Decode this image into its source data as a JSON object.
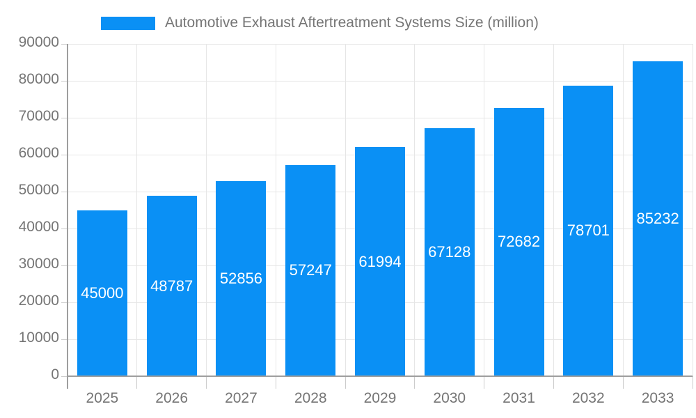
{
  "chart_data": {
    "type": "bar",
    "title": "Automotive Exhaust Aftertreatment Systems Size (million)",
    "categories": [
      "2025",
      "2026",
      "2027",
      "2028",
      "2029",
      "2030",
      "2031",
      "2032",
      "2033"
    ],
    "values": [
      45000,
      48787,
      52856,
      57247,
      61994,
      67128,
      72682,
      78701,
      85232
    ],
    "ylim": [
      0,
      90000
    ],
    "ytick_step": 10000,
    "ytick_labels": [
      "0",
      "10000",
      "20000",
      "30000",
      "40000",
      "50000",
      "60000",
      "70000",
      "80000",
      "90000"
    ],
    "legend_position": "top",
    "grid": "on",
    "colors": {
      "bar": "#0a90f5",
      "bar_label": "#ffffff",
      "axis_text": "#757575",
      "grid_line": "#e6e6e6",
      "axis_line": "#9e9e9e",
      "tick_line": "#cccccc",
      "background": "#ffffff"
    }
  }
}
